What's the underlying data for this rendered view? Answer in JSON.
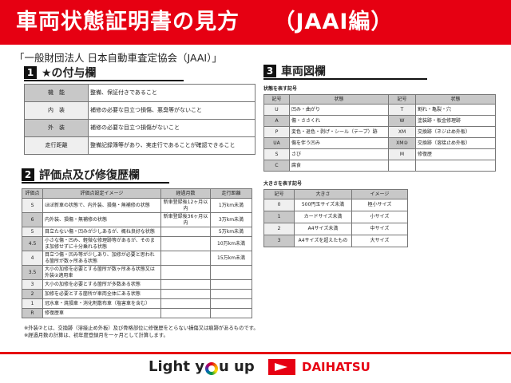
{
  "header": {
    "title": "車両状態証明書の見方　　（JAAI編）"
  },
  "organization": "「一般財団法人 日本自動車査定協会（JAAI）」",
  "section1": {
    "num": "1",
    "title": "★の付与欄",
    "rows": [
      {
        "key": "機　能",
        "value": "整備、保証付きであること"
      },
      {
        "key": "内　装",
        "value": "補修の必要な目立つ損傷、悪臭等がないこと"
      },
      {
        "key": "外　装",
        "value": "補修の必要な目立つ損傷がないこと"
      },
      {
        "key": "走行距離",
        "value": "整備記録簿等があり、実走行であることが確認できること"
      }
    ]
  },
  "section2": {
    "num": "2",
    "title": "評価点及び修復歴欄",
    "headers": [
      "評価点",
      "評価点設定イメージ",
      "経過月数",
      "走行距離"
    ],
    "rows": [
      [
        "S",
        "ほぼ新車の状態で、内外装、損傷・無補修の状態",
        "新車登録後12ヶ月以内",
        "1万km未満"
      ],
      [
        "6",
        "内外装、損傷・無補修の状態",
        "新車登録後36ヶ月以内",
        "3万km未満"
      ],
      [
        "5",
        "目立たない傷・凹みが少しあるが、概ね良好な状態",
        "",
        "5万km未満"
      ],
      [
        "4.5",
        "小さな傷・凹み、軽微な修理跡等があるが、そのまま加修せずに十分乗れる状態",
        "",
        "10万km未満"
      ],
      [
        "4",
        "目立つ傷・凹み等が少しあり、加修が必要と思われる箇所が数ヶ所ある状態",
        "",
        "15万km未満"
      ],
      [
        "3.5",
        "大小の加修を必要とする箇所が数ヶ所ある状態又は外装②適用車",
        "",
        ""
      ],
      [
        "3",
        "大小の加修を必要とする箇所が多数ある状態",
        "",
        ""
      ],
      [
        "2",
        "加修を必要とする箇所が車両全体にある状態",
        "",
        ""
      ],
      [
        "1",
        "冠水車・焼損車・消化剤散布車（塩害車を含む）",
        "",
        ""
      ],
      [
        "R",
        "修復歴車",
        "",
        ""
      ]
    ]
  },
  "section3": {
    "num": "3",
    "title": "車両図欄",
    "state_caption": "状態を表す記号",
    "state_headers": [
      "記号",
      "状態",
      "記号",
      "状態"
    ],
    "state_rows": [
      [
        "U",
        "凹み・曲がり",
        "T",
        "割れ・亀裂・穴"
      ],
      [
        "A",
        "傷・ささくれ",
        "W",
        "塗装跡・板金修理跡"
      ],
      [
        "P",
        "変色・退色・剥げ・シール（テープ）跡",
        "XM",
        "交換跡（ネジ止め外板）"
      ],
      [
        "UA",
        "傷を伴う凹み",
        "XM②",
        "交換跡（溶接止め外板）"
      ],
      [
        "S",
        "さび",
        "M",
        "修復歴"
      ],
      [
        "C",
        "腐食",
        "",
        ""
      ]
    ],
    "size_caption": "大きさを表す記号",
    "size_headers": [
      "記号",
      "大きさ",
      "イメージ"
    ],
    "size_rows": [
      [
        "0",
        "500円玉サイズ未満",
        "極小サイズ"
      ],
      [
        "1",
        "カードサイズ未満",
        "小サイズ"
      ],
      [
        "2",
        "A4サイズ未満",
        "中サイズ"
      ],
      [
        "3",
        "A4サイズを超えたもの",
        "大サイズ"
      ]
    ]
  },
  "notes": [
    "※外装②とは、交換跡（溶接止め外板）及び骨格部位に修復歴をとらない損傷又は痕跡があるものです。",
    "※経過月数の計算は、初年度登録月を一ヶ月として計算します。"
  ],
  "footer": {
    "slogan_pre": "Light y",
    "slogan_post": "u up",
    "brand": "DAIHATSU"
  },
  "colors": {
    "brand_red": "#e60012",
    "header_cell": "#c8c8c8"
  }
}
